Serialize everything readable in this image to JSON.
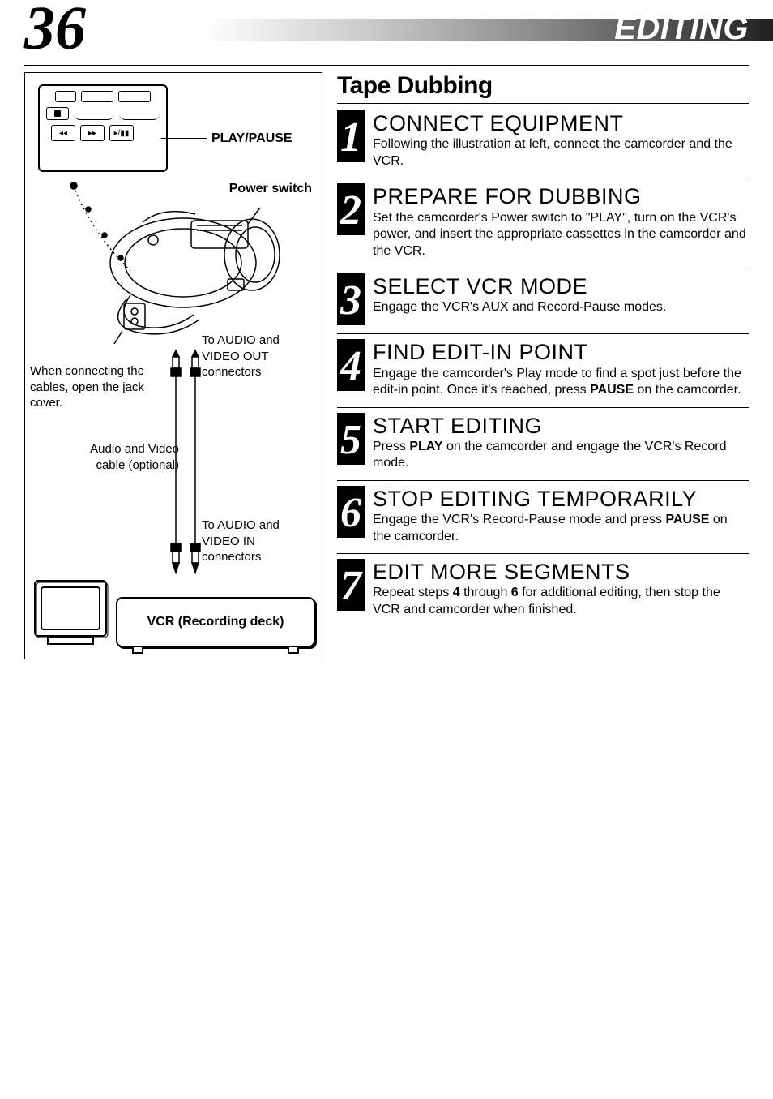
{
  "header": {
    "page_number": "36",
    "section": "EDITING",
    "gradient_from": "#ffffff",
    "gradient_to": "#000000"
  },
  "topic_title": "Tape Dubbing",
  "diagram": {
    "play_pause_label": "PLAY/PAUSE",
    "power_switch_label": "Power switch",
    "lcd_buttons": {
      "rew": "◂◂",
      "ff": "▸▸",
      "playpause": "▸/▮▮"
    },
    "out_label_line1": "To AUDIO and",
    "out_label_line2": "VIDEO OUT",
    "out_label_line3": "connectors",
    "jack_cover_text": "When connecting the cables, open the jack cover.",
    "av_cable_line1": "Audio and Video",
    "av_cable_line2": "cable (optional)",
    "in_label_line1": "To AUDIO and",
    "in_label_line2": "VIDEO IN",
    "in_label_line3": "connectors",
    "vcr_label": "VCR (Recording deck)"
  },
  "steps": [
    {
      "num": "1",
      "title": "CONNECT EQUIPMENT",
      "body_html": "Following the illustration at left, connect the camcorder and the VCR."
    },
    {
      "num": "2",
      "title": "PREPARE FOR DUBBING",
      "body_html": "Set the camcorder's Power switch to \"PLAY\", turn on the VCR's power, and insert the appropriate cassettes in the camcorder and the VCR."
    },
    {
      "num": "3",
      "title": "SELECT VCR MODE",
      "body_html": "Engage the VCR's AUX and Record-Pause modes."
    },
    {
      "num": "4",
      "title": "FIND EDIT-IN POINT",
      "body_html": "Engage the camcorder's Play mode to find a spot just before the edit-in point. Once it's reached, press <b>PAUSE</b> on the camcorder."
    },
    {
      "num": "5",
      "title": "START EDITING",
      "body_html": "Press <b>PLAY</b> on the camcorder and engage the VCR's Record mode."
    },
    {
      "num": "6",
      "title": "STOP EDITING TEMPORARILY",
      "body_html": "Engage the VCR's Record-Pause mode and press <b>PAUSE</b> on the camcorder."
    },
    {
      "num": "7",
      "title": "EDIT MORE SEGMENTS",
      "body_html": "Repeat steps <b>4</b> through <b>6</b> for additional editing, then stop the VCR and camcorder when finished."
    }
  ],
  "colors": {
    "text": "#000000",
    "bg": "#ffffff",
    "step_num_bg": "#000000",
    "step_num_fg": "#ffffff"
  }
}
